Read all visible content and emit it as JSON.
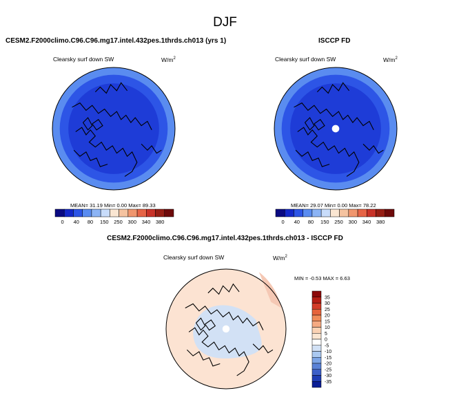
{
  "season": "DJF",
  "panels": [
    {
      "title": "CESM2.F2000climo.C96.C96.mg17.intel.432pes.1thrds.ch013 (yrs 1)",
      "variable": "Clearsky surf down SW",
      "units": "W/m",
      "units_sup": "2",
      "stats": "MEAN=  31.19  Min=   0.00  Max=  89.33"
    },
    {
      "title": "ISCCP FD",
      "variable": "Clearsky surf down SW",
      "units": "W/m",
      "units_sup": "2",
      "stats": "MEAN=  29.07  Min=   0.00  Max=  78.22"
    },
    {
      "title": "CESM2.F2000climo.C96.C96.mg17.intel.432pes.1thrds.ch013 - ISCCP FD",
      "variable": "Clearsky surf down SW",
      "units": "W/m",
      "units_sup": "2",
      "stats": "MIN =  -0.53 MAX =   6.63"
    }
  ],
  "chart_data": [
    {
      "type": "heatmap",
      "projection": "north-polar-stereographic",
      "title": "CESM2.F2000climo.C96.C96.mg17.intel.432pes.1thrds.ch013 (yrs 1)",
      "variable": "Clearsky surf down SW",
      "units": "W/m2",
      "mean": 31.19,
      "min": 0.0,
      "max": 89.33,
      "colorbar": {
        "orientation": "horizontal",
        "levels": [
          "0",
          "40",
          "80",
          "150",
          "250",
          "300",
          "340",
          "380"
        ],
        "colors": [
          "#0a0a82",
          "#1428c8",
          "#2d55e6",
          "#5a8cf0",
          "#8cb4f5",
          "#c8dcfa",
          "#fae6d2",
          "#f5c3a0",
          "#f0966e",
          "#e66446",
          "#c83228",
          "#961e14",
          "#6e0a0a"
        ]
      },
      "rings": [
        {
          "name": "outer",
          "color": "#5a8cf0"
        },
        {
          "name": "middle",
          "color": "#2d55e6"
        },
        {
          "name": "inner",
          "color": "#1e3cd7"
        }
      ]
    },
    {
      "type": "heatmap",
      "projection": "north-polar-stereographic",
      "title": "ISCCP FD",
      "variable": "Clearsky surf down SW",
      "units": "W/m2",
      "mean": 29.07,
      "min": 0.0,
      "max": 78.22,
      "colorbar": {
        "orientation": "horizontal",
        "levels": [
          "0",
          "40",
          "80",
          "150",
          "250",
          "300",
          "340",
          "380"
        ],
        "colors": [
          "#0a0a82",
          "#1428c8",
          "#2d55e6",
          "#5a8cf0",
          "#8cb4f5",
          "#c8dcfa",
          "#fae6d2",
          "#f5c3a0",
          "#f0966e",
          "#e66446",
          "#c83228",
          "#961e14",
          "#6e0a0a"
        ]
      },
      "rings": [
        {
          "name": "outer",
          "color": "#5a8cf0"
        },
        {
          "name": "middle",
          "color": "#2d55e6"
        },
        {
          "name": "inner",
          "color": "#1e3cd7"
        }
      ],
      "missing_pole": true
    },
    {
      "type": "heatmap",
      "projection": "north-polar-stereographic",
      "title": "CESM2.F2000climo.C96.C96.mg17.intel.432pes.1thrds.ch013 - ISCCP FD",
      "variable": "Clearsky surf down SW",
      "units": "W/m2",
      "min": -0.53,
      "max": 6.63,
      "colorbar": {
        "orientation": "vertical",
        "levels": [
          "35",
          "30",
          "25",
          "20",
          "15",
          "10",
          "5",
          "0",
          "-5",
          "-10",
          "-15",
          "-20",
          "-25",
          "-30",
          "-35"
        ],
        "colors": [
          "#8c0a0a",
          "#b41e14",
          "#d23c28",
          "#e6643c",
          "#f08c5a",
          "#f5aa82",
          "#fad2b4",
          "#fae6d2",
          "#ffffff",
          "#d2e1f5",
          "#aac8f0",
          "#7da5e6",
          "#5a82d7",
          "#3c5fc8",
          "#1e3cb4",
          "#0a1e96"
        ]
      },
      "background_color": "#fce3d2",
      "negative_region_color": "#d2e1f5",
      "positive_edge_color": "#f5c8b4"
    }
  ]
}
